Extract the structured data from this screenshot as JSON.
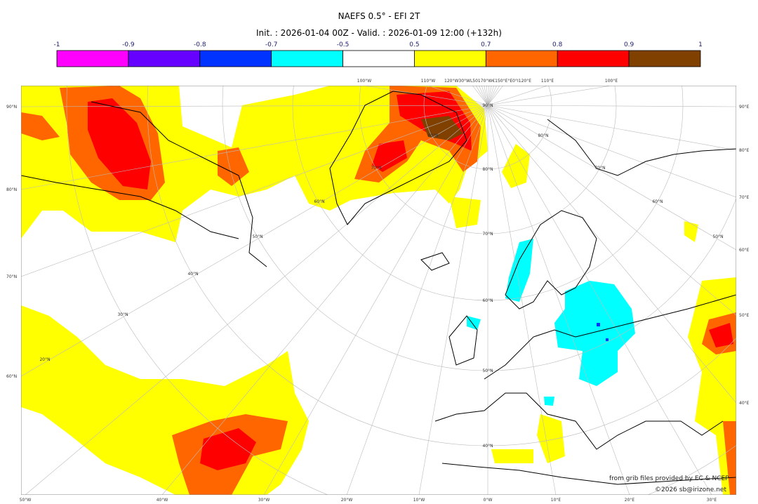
{
  "title": "NAEFS 0.5° - EFI 2T",
  "subtitle": "Init. : 2026-01-04 00Z - Valid. : 2026-01-09 12:00 (+132h)",
  "colorbar": {
    "ticks": [
      "-1",
      "-0.9",
      "-0.8",
      "-0.7",
      "-0.5",
      "0.5",
      "0.7",
      "0.8",
      "0.9",
      "1"
    ],
    "colors": [
      "#ff00ff",
      "#6600ff",
      "#0033ff",
      "#00ffff",
      "#ffffff",
      "#ffff00",
      "#ff6600",
      "#ff0000",
      "#804000"
    ]
  },
  "map": {
    "projection": "polar stereographic",
    "left_labels": [
      "90°N",
      "80°N",
      "70°N",
      "60°N"
    ],
    "right_labels": [
      "90°E",
      "80°E",
      "70°E",
      "60°E",
      "50°E",
      "40°E"
    ],
    "bottom_labels": [
      "50°W",
      "40°W",
      "30°W",
      "20°W",
      "10°W",
      "0°W",
      "10°E",
      "20°E",
      "30°E"
    ],
    "top_labels": [
      "100°W",
      "110°W",
      "120°W30°WL50170°W€150°E°E0°I120°E",
      "110°E",
      "100°E"
    ],
    "lat_labels_center": [
      "90°N",
      "80°N",
      "70°N",
      "60°N",
      "50°N",
      "40°N"
    ],
    "lat_labels_left": [
      "20°N",
      "30°N",
      "40°N",
      "50°N",
      "60°N",
      "70°N",
      "80°N"
    ],
    "lat_labels_right": [
      "80°N",
      "70°N",
      "60°N",
      "50°N"
    ]
  },
  "credits": {
    "source": "from grib files provided by EC & NCEP",
    "copyright": "©2026 sb@irizone.net"
  }
}
